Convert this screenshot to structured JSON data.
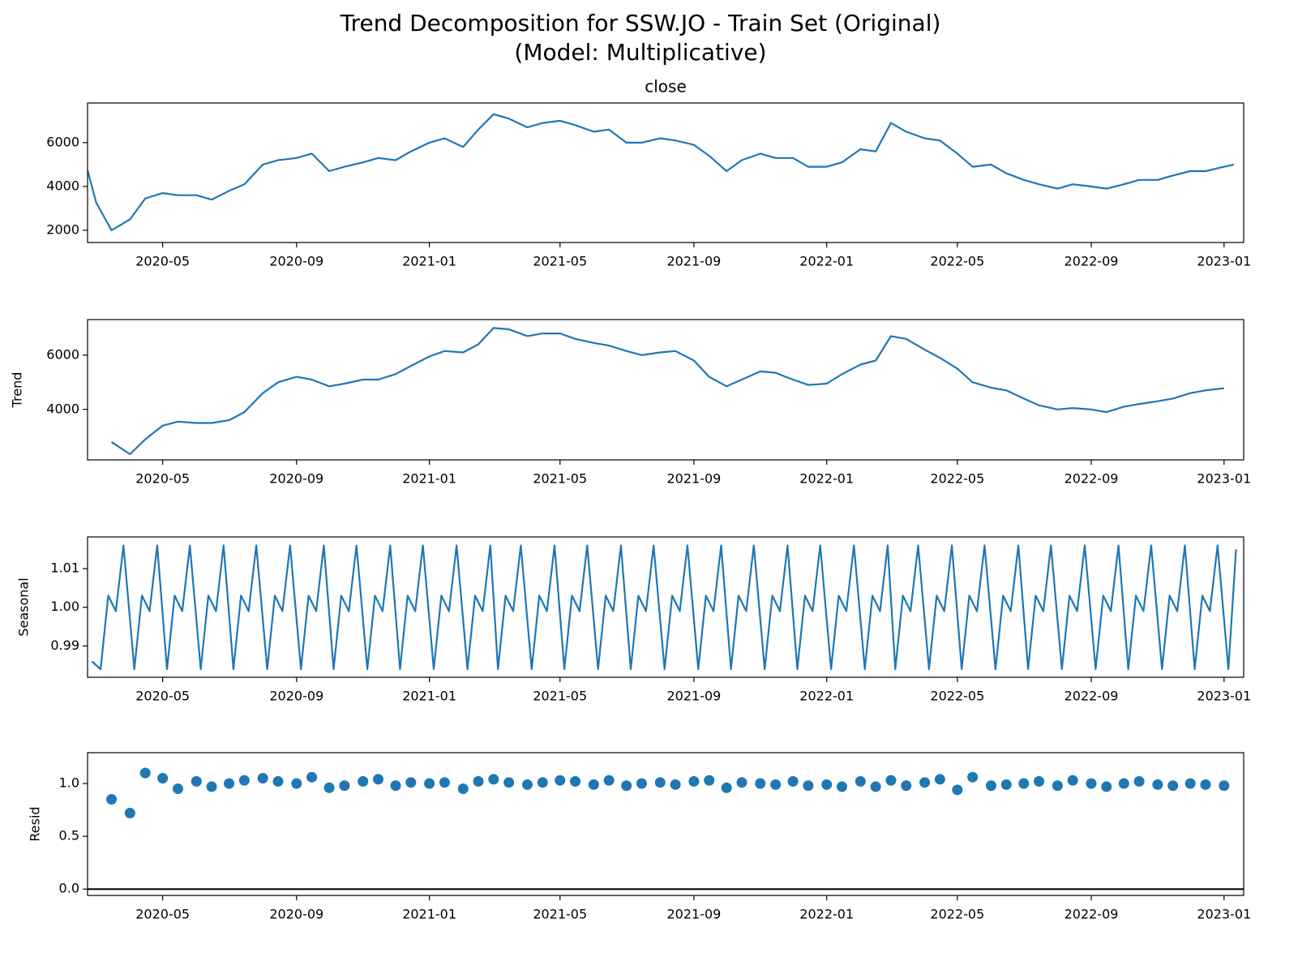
{
  "title": [
    "Trend Decomposition for SSW.JO - Train Set (Original)",
    "(Model: Multiplicative)"
  ],
  "chart_data": [
    {
      "type": "line",
      "title": "close",
      "color": "#1f77b4",
      "x": [
        "2020-02-22",
        "2020-03-01",
        "2020-03-15",
        "2020-04-01",
        "2020-04-15",
        "2020-05-01",
        "2020-05-15",
        "2020-06-01",
        "2020-06-15",
        "2020-07-01",
        "2020-07-15",
        "2020-08-01",
        "2020-08-15",
        "2020-09-01",
        "2020-09-15",
        "2020-10-01",
        "2020-10-15",
        "2020-11-01",
        "2020-11-15",
        "2020-12-01",
        "2020-12-15",
        "2021-01-01",
        "2021-01-15",
        "2021-02-01",
        "2021-02-15",
        "2021-03-01",
        "2021-03-15",
        "2021-04-01",
        "2021-04-15",
        "2021-05-01",
        "2021-05-15",
        "2021-06-01",
        "2021-06-15",
        "2021-07-01",
        "2021-07-15",
        "2021-08-01",
        "2021-08-15",
        "2021-09-01",
        "2021-09-15",
        "2021-10-01",
        "2021-10-15",
        "2021-11-01",
        "2021-11-15",
        "2021-12-01",
        "2021-12-15",
        "2022-01-01",
        "2022-01-15",
        "2022-02-01",
        "2022-02-15",
        "2022-03-01",
        "2022-03-15",
        "2022-04-01",
        "2022-04-15",
        "2022-05-01",
        "2022-05-15",
        "2022-06-01",
        "2022-06-15",
        "2022-07-01",
        "2022-07-15",
        "2022-08-01",
        "2022-08-15",
        "2022-09-01",
        "2022-09-15",
        "2022-10-01",
        "2022-10-15",
        "2022-11-01",
        "2022-11-15",
        "2022-12-01",
        "2022-12-15",
        "2023-01-01",
        "2023-01-10"
      ],
      "values": [
        4740,
        3260,
        2000,
        2500,
        3450,
        3700,
        3600,
        3600,
        3400,
        3800,
        4100,
        5000,
        5200,
        5300,
        5500,
        4700,
        4900,
        5100,
        5300,
        5200,
        5600,
        6000,
        6200,
        5800,
        6600,
        7300,
        7100,
        6700,
        6900,
        7000,
        6800,
        6500,
        6600,
        6000,
        6000,
        6200,
        6100,
        5900,
        5400,
        4700,
        5200,
        5500,
        5300,
        5300,
        4900,
        4900,
        5100,
        5700,
        5600,
        6900,
        6500,
        6200,
        6100,
        5500,
        4900,
        5000,
        4600,
        4300,
        4100,
        3900,
        4100,
        4000,
        3900,
        4100,
        4300,
        4300,
        4500,
        4700,
        4700,
        4900,
        5000
      ],
      "xlim": [
        "2020-02-22",
        "2023-01-19"
      ],
      "xticks": [
        {
          "value": "2020-05-01",
          "label": "2020-05"
        },
        {
          "value": "2020-09-01",
          "label": "2020-09"
        },
        {
          "value": "2021-01-01",
          "label": "2021-01"
        },
        {
          "value": "2021-05-01",
          "label": "2021-05"
        },
        {
          "value": "2021-09-01",
          "label": "2021-09"
        },
        {
          "value": "2022-01-01",
          "label": "2022-01"
        },
        {
          "value": "2022-05-01",
          "label": "2022-05"
        },
        {
          "value": "2022-09-01",
          "label": "2022-09"
        },
        {
          "value": "2023-01-01",
          "label": "2023-01"
        }
      ],
      "ylim": [
        1440,
        7810
      ],
      "yticks": [
        2000,
        4000,
        6000
      ]
    },
    {
      "type": "line",
      "ylabel": "Trend",
      "color": "#1f77b4",
      "x": [
        "2020-02-22",
        "2020-03-01",
        "2020-03-15",
        "2020-04-01",
        "2020-04-15",
        "2020-05-01",
        "2020-05-15",
        "2020-06-01",
        "2020-06-15",
        "2020-07-01",
        "2020-07-15",
        "2020-08-01",
        "2020-08-15",
        "2020-09-01",
        "2020-09-15",
        "2020-10-01",
        "2020-10-15",
        "2020-11-01",
        "2020-11-15",
        "2020-12-01",
        "2020-12-15",
        "2021-01-01",
        "2021-01-15",
        "2021-02-01",
        "2021-02-15",
        "2021-03-01",
        "2021-03-15",
        "2021-04-01",
        "2021-04-15",
        "2021-05-01",
        "2021-05-15",
        "2021-06-01",
        "2021-06-15",
        "2021-07-01",
        "2021-07-15",
        "2021-08-01",
        "2021-08-15",
        "2021-09-01",
        "2021-09-15",
        "2021-10-01",
        "2021-10-15",
        "2021-11-01",
        "2021-11-15",
        "2021-12-01",
        "2021-12-15",
        "2022-01-01",
        "2022-01-15",
        "2022-02-01",
        "2022-02-15",
        "2022-03-01",
        "2022-03-15",
        "2022-04-01",
        "2022-04-15",
        "2022-05-01",
        "2022-05-15",
        "2022-06-01",
        "2022-06-15",
        "2022-07-01",
        "2022-07-15",
        "2022-08-01",
        "2022-08-15",
        "2022-09-01",
        "2022-09-15",
        "2022-10-01",
        "2022-10-15",
        "2022-11-01",
        "2022-11-15",
        "2022-12-01",
        "2022-12-15",
        "2023-01-01",
        "2023-01-10"
      ],
      "values": [
        null,
        null,
        2800,
        2350,
        2900,
        3400,
        3550,
        3500,
        3500,
        3600,
        3900,
        4600,
        5000,
        5200,
        5100,
        4850,
        4950,
        5100,
        5100,
        5300,
        5600,
        5950,
        6150,
        6100,
        6400,
        7000,
        6950,
        6700,
        6800,
        6800,
        6600,
        6450,
        6350,
        6150,
        6000,
        6100,
        6150,
        5800,
        5200,
        4850,
        5100,
        5400,
        5350,
        5100,
        4900,
        4950,
        5300,
        5650,
        5800,
        6700,
        6600,
        6200,
        5900,
        5500,
        5000,
        4800,
        4700,
        4400,
        4150,
        4000,
        4050,
        4000,
        3900,
        4100,
        4200,
        4300,
        4400,
        4600,
        4700,
        4780,
        null
      ],
      "xlim": [
        "2020-02-22",
        "2023-01-19"
      ],
      "xticks": [
        {
          "value": "2020-05-01",
          "label": "2020-05"
        },
        {
          "value": "2020-09-01",
          "label": "2020-09"
        },
        {
          "value": "2021-01-01",
          "label": "2021-01"
        },
        {
          "value": "2021-05-01",
          "label": "2021-05"
        },
        {
          "value": "2021-09-01",
          "label": "2021-09"
        },
        {
          "value": "2022-01-01",
          "label": "2022-01"
        },
        {
          "value": "2022-05-01",
          "label": "2022-05"
        },
        {
          "value": "2022-09-01",
          "label": "2022-09"
        },
        {
          "value": "2023-01-01",
          "label": "2023-01"
        }
      ],
      "ylim": [
        2140,
        7310
      ],
      "yticks": [
        4000,
        6000
      ]
    },
    {
      "type": "line",
      "ylabel": "Seasonal",
      "color": "#1f77b4",
      "x": [
        "2020-02-26",
        "2020-03-05",
        "2020-03-12",
        "2020-03-19",
        "2020-03-26",
        "2020-04-05",
        "2020-04-12",
        "2020-04-19",
        "2020-04-26",
        "2020-05-05",
        "2020-05-12",
        "2020-05-19",
        "2020-05-26",
        "2020-06-05",
        "2020-06-12",
        "2020-06-19",
        "2020-06-26",
        "2020-07-05",
        "2020-07-12",
        "2020-07-19",
        "2020-07-26",
        "2020-08-05",
        "2020-08-12",
        "2020-08-19",
        "2020-08-26",
        "2020-09-05",
        "2020-09-12",
        "2020-09-19",
        "2020-09-26",
        "2020-10-05",
        "2020-10-12",
        "2020-10-19",
        "2020-10-26",
        "2020-11-05",
        "2020-11-12",
        "2020-11-19",
        "2020-11-26",
        "2020-12-05",
        "2020-12-12",
        "2020-12-19",
        "2020-12-26",
        "2021-01-05",
        "2021-01-12",
        "2021-01-19",
        "2021-01-26",
        "2021-02-05",
        "2021-02-12",
        "2021-02-19",
        "2021-02-26",
        "2021-03-05",
        "2021-03-12",
        "2021-03-19",
        "2021-03-26",
        "2021-04-05",
        "2021-04-12",
        "2021-04-19",
        "2021-04-26",
        "2021-05-05",
        "2021-05-12",
        "2021-05-19",
        "2021-05-26",
        "2021-06-05",
        "2021-06-12",
        "2021-06-19",
        "2021-06-26",
        "2021-07-05",
        "2021-07-12",
        "2021-07-19",
        "2021-07-26",
        "2021-08-05",
        "2021-08-12",
        "2021-08-19",
        "2021-08-26",
        "2021-09-05",
        "2021-09-12",
        "2021-09-19",
        "2021-09-26",
        "2021-10-05",
        "2021-10-12",
        "2021-10-19",
        "2021-10-26",
        "2021-11-05",
        "2021-11-12",
        "2021-11-19",
        "2021-11-26",
        "2021-12-05",
        "2021-12-12",
        "2021-12-19",
        "2021-12-26",
        "2022-01-05",
        "2022-01-12",
        "2022-01-19",
        "2022-01-26",
        "2022-02-05",
        "2022-02-12",
        "2022-02-19",
        "2022-02-26",
        "2022-03-05",
        "2022-03-12",
        "2022-03-19",
        "2022-03-26",
        "2022-04-05",
        "2022-04-12",
        "2022-04-19",
        "2022-04-26",
        "2022-05-05",
        "2022-05-12",
        "2022-05-19",
        "2022-05-26",
        "2022-06-05",
        "2022-06-12",
        "2022-06-19",
        "2022-06-26",
        "2022-07-05",
        "2022-07-12",
        "2022-07-19",
        "2022-07-26",
        "2022-08-05",
        "2022-08-12",
        "2022-08-19",
        "2022-08-26",
        "2022-09-05",
        "2022-09-12",
        "2022-09-19",
        "2022-09-26",
        "2022-10-05",
        "2022-10-12",
        "2022-10-19",
        "2022-10-26",
        "2022-11-05",
        "2022-11-12",
        "2022-11-19",
        "2022-11-26",
        "2022-12-05",
        "2022-12-12",
        "2022-12-19",
        "2022-12-26",
        "2023-01-05",
        "2023-01-12"
      ],
      "values": [
        0.986,
        0.984,
        1.003,
        0.999,
        1.016,
        0.984,
        1.003,
        0.999,
        1.016,
        0.984,
        1.003,
        0.999,
        1.016,
        0.984,
        1.003,
        0.999,
        1.016,
        0.984,
        1.003,
        0.999,
        1.016,
        0.984,
        1.003,
        0.999,
        1.016,
        0.984,
        1.003,
        0.999,
        1.016,
        0.984,
        1.003,
        0.999,
        1.016,
        0.984,
        1.003,
        0.999,
        1.016,
        0.984,
        1.003,
        0.999,
        1.016,
        0.984,
        1.003,
        0.999,
        1.016,
        0.984,
        1.003,
        0.999,
        1.016,
        0.984,
        1.003,
        0.999,
        1.016,
        0.984,
        1.003,
        0.999,
        1.016,
        0.984,
        1.003,
        0.999,
        1.016,
        0.984,
        1.003,
        0.999,
        1.016,
        0.984,
        1.003,
        0.999,
        1.016,
        0.984,
        1.003,
        0.999,
        1.016,
        0.984,
        1.003,
        0.999,
        1.016,
        0.984,
        1.003,
        0.999,
        1.016,
        0.984,
        1.003,
        0.999,
        1.016,
        0.984,
        1.003,
        0.999,
        1.016,
        0.984,
        1.003,
        0.999,
        1.016,
        0.984,
        1.003,
        0.999,
        1.016,
        0.984,
        1.003,
        0.999,
        1.016,
        0.984,
        1.003,
        0.999,
        1.016,
        0.984,
        1.003,
        0.999,
        1.016,
        0.984,
        1.003,
        0.999,
        1.016,
        0.984,
        1.003,
        0.999,
        1.016,
        0.984,
        1.003,
        0.999,
        1.016,
        0.984,
        1.003,
        0.999,
        1.016,
        0.984,
        1.003,
        0.999,
        1.016,
        0.984,
        1.003,
        0.999,
        1.016,
        0.984,
        1.003,
        0.999,
        1.016,
        0.984,
        1.015
      ],
      "xlim": [
        "2020-02-22",
        "2023-01-19"
      ],
      "xticks": [
        {
          "value": "2020-05-01",
          "label": "2020-05"
        },
        {
          "value": "2020-09-01",
          "label": "2020-09"
        },
        {
          "value": "2021-01-01",
          "label": "2021-01"
        },
        {
          "value": "2021-05-01",
          "label": "2021-05"
        },
        {
          "value": "2021-09-01",
          "label": "2021-09"
        },
        {
          "value": "2022-01-01",
          "label": "2022-01"
        },
        {
          "value": "2022-05-01",
          "label": "2022-05"
        },
        {
          "value": "2022-09-01",
          "label": "2022-09"
        },
        {
          "value": "2023-01-01",
          "label": "2023-01"
        }
      ],
      "ylim": [
        0.9819,
        1.0182
      ],
      "yticks": [
        0.99,
        {
          "value": 1,
          "label": "1.00"
        },
        1.01
      ]
    },
    {
      "type": "scatter",
      "ylabel": "Resid",
      "color": "#1f77b4",
      "x": [
        "2020-02-22",
        "2020-03-01",
        "2020-03-15",
        "2020-04-01",
        "2020-04-15",
        "2020-05-01",
        "2020-05-15",
        "2020-06-01",
        "2020-06-15",
        "2020-07-01",
        "2020-07-15",
        "2020-08-01",
        "2020-08-15",
        "2020-09-01",
        "2020-09-15",
        "2020-10-01",
        "2020-10-15",
        "2020-11-01",
        "2020-11-15",
        "2020-12-01",
        "2020-12-15",
        "2021-01-01",
        "2021-01-15",
        "2021-02-01",
        "2021-02-15",
        "2021-03-01",
        "2021-03-15",
        "2021-04-01",
        "2021-04-15",
        "2021-05-01",
        "2021-05-15",
        "2021-06-01",
        "2021-06-15",
        "2021-07-01",
        "2021-07-15",
        "2021-08-01",
        "2021-08-15",
        "2021-09-01",
        "2021-09-15",
        "2021-10-01",
        "2021-10-15",
        "2021-11-01",
        "2021-11-15",
        "2021-12-01",
        "2021-12-15",
        "2022-01-01",
        "2022-01-15",
        "2022-02-01",
        "2022-02-15",
        "2022-03-01",
        "2022-03-15",
        "2022-04-01",
        "2022-04-15",
        "2022-05-01",
        "2022-05-15",
        "2022-06-01",
        "2022-06-15",
        "2022-07-01",
        "2022-07-15",
        "2022-08-01",
        "2022-08-15",
        "2022-09-01",
        "2022-09-15",
        "2022-10-01",
        "2022-10-15",
        "2022-11-01",
        "2022-11-15",
        "2022-12-01",
        "2022-12-15",
        "2023-01-01",
        "2023-01-10"
      ],
      "values": [
        null,
        null,
        0.85,
        0.72,
        1.1,
        1.05,
        0.95,
        1.02,
        0.97,
        1.0,
        1.03,
        1.05,
        1.02,
        1.0,
        1.06,
        0.96,
        0.98,
        1.02,
        1.04,
        0.98,
        1.01,
        1.0,
        1.01,
        0.95,
        1.02,
        1.04,
        1.01,
        0.99,
        1.01,
        1.03,
        1.02,
        0.99,
        1.03,
        0.98,
        1.0,
        1.01,
        0.99,
        1.02,
        1.03,
        0.96,
        1.01,
        1.0,
        0.99,
        1.02,
        0.98,
        0.99,
        0.97,
        1.02,
        0.97,
        1.03,
        0.98,
        1.01,
        1.04,
        0.94,
        1.06,
        0.98,
        0.99,
        1.0,
        1.02,
        0.98,
        1.03,
        1.0,
        0.97,
        1.0,
        1.02,
        0.99,
        0.98,
        1.0,
        0.99,
        0.98,
        null
      ],
      "xlim": [
        "2020-02-22",
        "2023-01-19"
      ],
      "xticks": [
        {
          "value": "2020-05-01",
          "label": "2020-05"
        },
        {
          "value": "2020-09-01",
          "label": "2020-09"
        },
        {
          "value": "2021-01-01",
          "label": "2021-01"
        },
        {
          "value": "2021-05-01",
          "label": "2021-05"
        },
        {
          "value": "2021-09-01",
          "label": "2021-09"
        },
        {
          "value": "2022-01-01",
          "label": "2022-01"
        },
        {
          "value": "2022-05-01",
          "label": "2022-05"
        },
        {
          "value": "2022-09-01",
          "label": "2022-09"
        },
        {
          "value": "2023-01-01",
          "label": "2023-01"
        }
      ],
      "ylim": [
        -0.06,
        1.292
      ],
      "yticks": [
        {
          "value": 0,
          "label": "0.0"
        },
        0.5,
        {
          "value": 1,
          "label": "1.0"
        }
      ]
    }
  ]
}
